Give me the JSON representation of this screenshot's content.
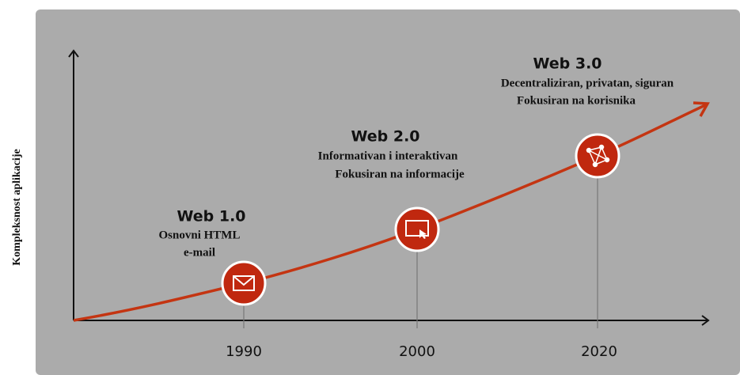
{
  "y_axis_label": "Kompleksnost aplikacije",
  "stages": [
    {
      "title": "Web 1.0",
      "lines": [
        "Osnovni HTML",
        "e-mail"
      ],
      "year": "1990"
    },
    {
      "title": "Web 2.0",
      "lines": [
        "Informativan i interaktivan",
        "Fokusiran na informacije"
      ],
      "year": "2000"
    },
    {
      "title": "Web 3.0",
      "lines": [
        "Decentraliziran, privatan, siguran",
        "Fokusiran na korisnika"
      ],
      "year": "2020"
    }
  ]
}
